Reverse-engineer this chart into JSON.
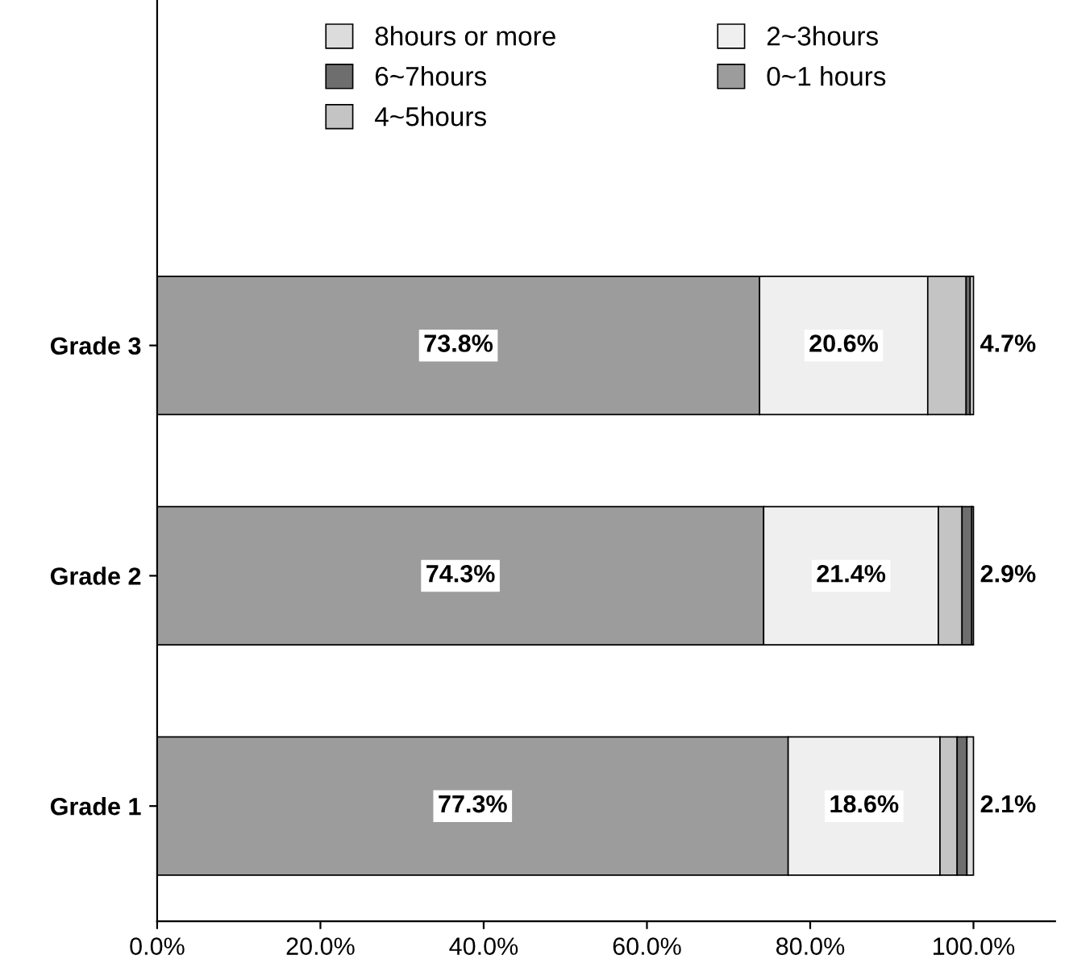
{
  "chart_data": {
    "type": "bar",
    "orientation": "horizontal",
    "stacked": true,
    "categories": [
      "Grade 3",
      "Grade 2",
      "Grade 1"
    ],
    "series": [
      {
        "name": "0~1 hours",
        "color": "#9c9c9c",
        "values": [
          73.8,
          74.3,
          77.3
        ],
        "value_labels": [
          "73.8%",
          "74.3%",
          "77.3%"
        ]
      },
      {
        "name": "2~3hours",
        "color": "#efefef",
        "values": [
          20.6,
          21.4,
          18.6
        ],
        "value_labels": [
          "20.6%",
          "21.4%",
          "18.6%"
        ]
      },
      {
        "name": "4~5hours",
        "color": "#c4c4c4",
        "values": [
          4.7,
          2.9,
          2.1
        ],
        "value_labels": [
          "4.7%",
          "2.9%",
          "2.1%"
        ]
      },
      {
        "name": "6~7hours",
        "color": "#6e6e6e",
        "values": [
          0.5,
          1.2,
          1.2
        ]
      },
      {
        "name": "8hours or more",
        "color": "#dcdcdc",
        "values": [
          0.4,
          0.2,
          0.8
        ]
      }
    ],
    "xlim": [
      0,
      110
    ],
    "xticks": [
      {
        "value": 0,
        "label": "0.0%"
      },
      {
        "value": 20,
        "label": "20.0%"
      },
      {
        "value": 40,
        "label": "40.0%"
      },
      {
        "value": 60,
        "label": "60.0%"
      },
      {
        "value": 80,
        "label": "80.0%"
      },
      {
        "value": 100,
        "label": "100.0%"
      }
    ],
    "grid": false,
    "legend": "top"
  }
}
